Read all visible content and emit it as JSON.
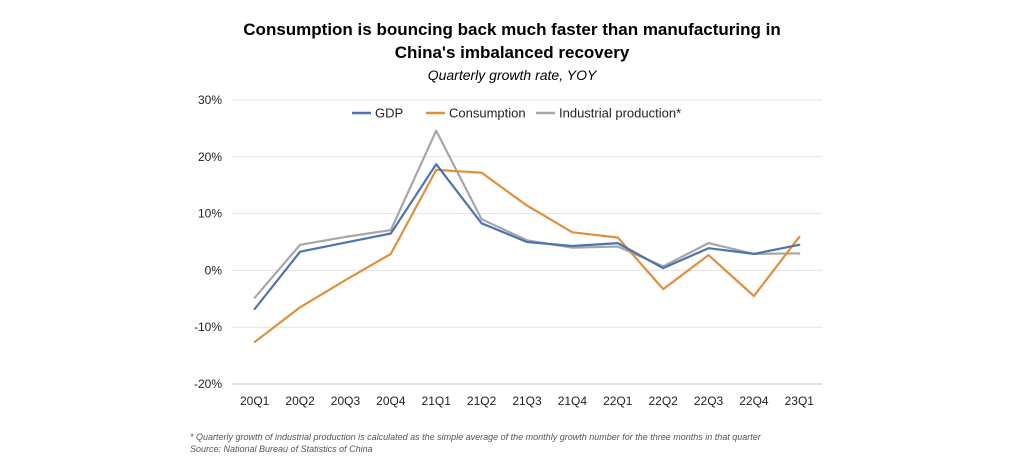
{
  "chart_data": {
    "type": "line",
    "title_line1": "Consumption is bouncing back much faster than manufacturing in",
    "title_line2": "China's imbalanced recovery",
    "subtitle": "Quarterly growth rate, YOY",
    "categories": [
      "20Q1",
      "20Q2",
      "20Q3",
      "20Q4",
      "21Q1",
      "21Q2",
      "21Q3",
      "21Q4",
      "22Q1",
      "22Q2",
      "22Q3",
      "22Q4",
      "23Q1"
    ],
    "y_ticks": [
      -20,
      -10,
      0,
      10,
      20,
      30
    ],
    "y_tick_labels": [
      "-20%",
      "-10%",
      "0%",
      "10%",
      "20%",
      "30%"
    ],
    "ylim": [
      -20,
      30
    ],
    "legend_position": "top-center",
    "series": [
      {
        "name": "GDP",
        "color": "#4f72b0",
        "values": [
          -6.8,
          3.3,
          4.9,
          6.5,
          18.7,
          8.3,
          5.0,
          4.3,
          4.8,
          0.4,
          3.9,
          2.9,
          4.5
        ]
      },
      {
        "name": "Consumption",
        "color": "#e08f3c",
        "values": [
          -12.6,
          -6.5,
          -1.7,
          2.9,
          17.7,
          17.2,
          11.4,
          6.7,
          5.8,
          -3.3,
          2.7,
          -4.5,
          5.9
        ]
      },
      {
        "name": "Industrial production*",
        "color": "#a6a6a6",
        "values": [
          -4.8,
          4.5,
          5.9,
          7.1,
          24.6,
          9.0,
          5.3,
          4.0,
          4.2,
          0.7,
          4.8,
          2.9,
          3.0
        ]
      }
    ]
  },
  "footnote": "* Quarterly growth of industrial production is calculated as the simple average of the monthly growth number for the three months in that quarter",
  "source": "Source: National Bureau of Statistics of China"
}
